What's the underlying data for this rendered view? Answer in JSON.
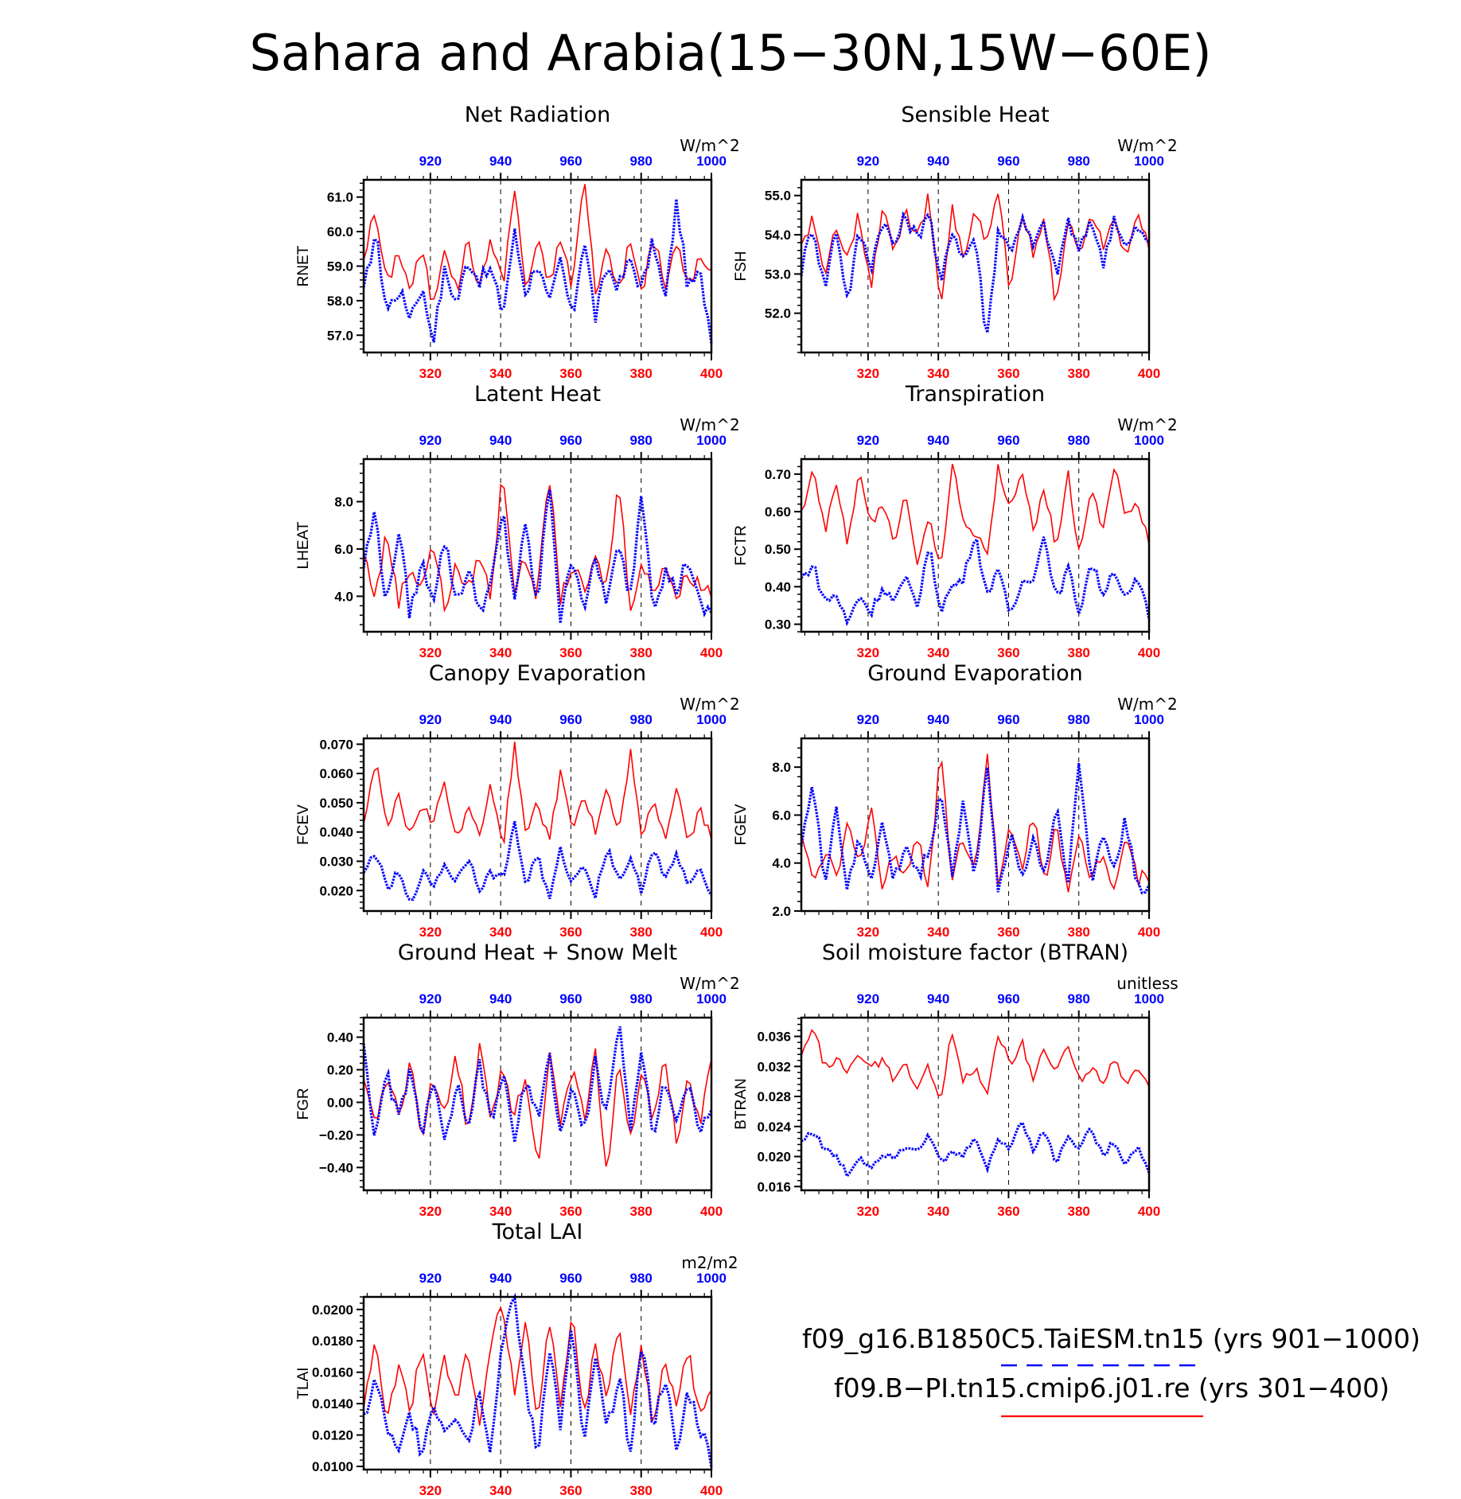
{
  "suptitle": "Sahara and Arabia(15−30N,15W−60E)",
  "colors": {
    "red": "#ff0000",
    "blue": "#0000ff",
    "axis": "#000000"
  },
  "legend": {
    "entries": [
      {
        "label": "f09_g16.B1850C5.TaiESM.tn15 (yrs 901−1000)",
        "color": "#0000ff",
        "style": "dashed"
      },
      {
        "label": "f09.B−PI.tn15.cmip6.j01.re (yrs 301−400)",
        "color": "#ff0000",
        "style": "solid"
      }
    ]
  },
  "chart_data": [
    {
      "type": "line",
      "title": "Net Radiation",
      "unit": "W/m^2",
      "ylabel": "RNET",
      "ylim": [
        56.5,
        61.5
      ],
      "yticks": [
        "57.0",
        "58.0",
        "59.0",
        "60.0",
        "61.0"
      ],
      "x_red_range": [
        301,
        400
      ],
      "x_red_ticks": [
        "320",
        "340",
        "360",
        "380",
        "400"
      ],
      "x_blue_range": [
        901,
        1000
      ],
      "x_blue_ticks": [
        "920",
        "940",
        "960",
        "980",
        "1000"
      ],
      "red_anchors": [
        59.3,
        60.6,
        58.4,
        59.5,
        58.3,
        59.5,
        57.8,
        59.7,
        58.2,
        59.8,
        58.3,
        59.9,
        58.4,
        61.3,
        58.3,
        59.7,
        58.5,
        59.8,
        58.4,
        61.6,
        58.3,
        59.5,
        58.3,
        59.7,
        58.2,
        59.9,
        58.4,
        59.6,
        58.5,
        59.2,
        58.7
      ],
      "blue_anchors": [
        58.2,
        60.0,
        57.7,
        58.3,
        57.6,
        58.4,
        56.9,
        58.9,
        57.9,
        59.2,
        58.6,
        58.9,
        57.6,
        60.0,
        58.2,
        59.2,
        57.8,
        59.2,
        57.4,
        59.9,
        57.5,
        59.0,
        58.4,
        59.2,
        58.3,
        59.8,
        57.9,
        60.9,
        58.3,
        58.8,
        57.0
      ],
      "series": [
        {
          "name": "f09_g16.B1850C5.TaiESM.tn15 (yrs 901−1000)",
          "x_axis": "top"
        },
        {
          "name": "f09.B−PI.tn15.cmip6.j01.re (yrs 301−400)",
          "x_axis": "bottom"
        }
      ]
    },
    {
      "type": "line",
      "title": "Sensible Heat",
      "unit": "W/m^2",
      "ylabel": "FSH",
      "ylim": [
        51.0,
        55.4
      ],
      "yticks": [
        "52.0",
        "53.0",
        "54.0",
        "55.0"
      ],
      "x_red_range": [
        301,
        400
      ],
      "x_red_ticks": [
        "320",
        "340",
        "360",
        "380",
        "400"
      ],
      "x_blue_range": [
        901,
        1000
      ],
      "x_blue_ticks": [
        "920",
        "940",
        "960",
        "980",
        "1000"
      ],
      "red_anchors": [
        53.8,
        54.4,
        52.8,
        54.3,
        53.5,
        54.6,
        52.5,
        54.8,
        53.5,
        54.6,
        53.9,
        55.0,
        52.0,
        54.7,
        53.4,
        54.6,
        53.7,
        55.2,
        52.3,
        54.5,
        53.6,
        54.4,
        52.1,
        54.4,
        53.5,
        54.6,
        53.7,
        54.4,
        53.5,
        54.4,
        53.8
      ],
      "blue_anchors": [
        53.1,
        54.3,
        52.6,
        54.2,
        52.3,
        54.1,
        53.2,
        54.4,
        53.7,
        54.5,
        53.9,
        54.7,
        52.6,
        54.2,
        53.4,
        54.0,
        51.3,
        54.2,
        53.6,
        54.4,
        53.7,
        54.3,
        52.9,
        54.4,
        53.5,
        54.5,
        53.2,
        54.5,
        53.6,
        54.2,
        53.7
      ],
      "series": [
        {
          "name": "f09_g16.B1850C5.TaiESM.tn15 (yrs 901−1000)",
          "x_axis": "top"
        },
        {
          "name": "f09.B−PI.tn15.cmip6.j01.re (yrs 301−400)",
          "x_axis": "bottom"
        }
      ]
    },
    {
      "type": "line",
      "title": "Latent Heat",
      "unit": "W/m^2",
      "ylabel": "LHEAT",
      "ylim": [
        2.5,
        9.8
      ],
      "yticks": [
        "4.0",
        "6.0",
        "8.0"
      ],
      "x_red_range": [
        301,
        400
      ],
      "x_red_ticks": [
        "320",
        "340",
        "360",
        "380",
        "400"
      ],
      "x_blue_range": [
        901,
        1000
      ],
      "x_blue_ticks": [
        "920",
        "940",
        "960",
        "980",
        "1000"
      ],
      "red_anchors": [
        5.8,
        4.0,
        6.7,
        3.8,
        5.2,
        4.5,
        6.2,
        3.5,
        5.3,
        4.2,
        5.8,
        3.9,
        9.5,
        4.3,
        5.6,
        4.0,
        9.3,
        3.8,
        5.4,
        4.1,
        5.5,
        4.4,
        9.0,
        3.6,
        5.3,
        4.2,
        5.5,
        3.9,
        5.0,
        4.5,
        4.2
      ],
      "blue_anchors": [
        5.3,
        7.6,
        3.5,
        6.9,
        3.2,
        5.4,
        4.0,
        6.4,
        3.8,
        5.1,
        3.5,
        4.4,
        7.6,
        3.9,
        7.0,
        3.4,
        9.1,
        2.8,
        5.9,
        3.6,
        5.4,
        3.8,
        6.1,
        4.0,
        8.6,
        3.6,
        5.1,
        4.2,
        5.7,
        3.5,
        3.3
      ],
      "series": [
        {
          "name": "f09_g16.B1850C5.TaiESM.tn15 (yrs 901−1000)",
          "x_axis": "top"
        },
        {
          "name": "f09.B−PI.tn15.cmip6.j01.re (yrs 301−400)",
          "x_axis": "bottom"
        }
      ]
    },
    {
      "type": "line",
      "title": "Transpiration",
      "unit": "W/m^2",
      "ylabel": "FCTR",
      "ylim": [
        0.28,
        0.74
      ],
      "yticks": [
        "0.30",
        "0.40",
        "0.50",
        "0.60",
        "0.70"
      ],
      "x_red_range": [
        301,
        400
      ],
      "x_red_ticks": [
        "320",
        "340",
        "360",
        "380",
        "400"
      ],
      "x_blue_range": [
        901,
        1000
      ],
      "x_blue_ticks": [
        "920",
        "940",
        "960",
        "980",
        "1000"
      ],
      "red_anchors": [
        0.6,
        0.71,
        0.55,
        0.66,
        0.52,
        0.7,
        0.56,
        0.62,
        0.52,
        0.66,
        0.47,
        0.58,
        0.44,
        0.73,
        0.58,
        0.54,
        0.48,
        0.72,
        0.6,
        0.72,
        0.55,
        0.66,
        0.5,
        0.7,
        0.48,
        0.67,
        0.56,
        0.72,
        0.58,
        0.62,
        0.52
      ],
      "blue_anchors": [
        0.42,
        0.46,
        0.36,
        0.38,
        0.3,
        0.38,
        0.33,
        0.4,
        0.36,
        0.42,
        0.35,
        0.51,
        0.34,
        0.4,
        0.42,
        0.55,
        0.37,
        0.46,
        0.31,
        0.41,
        0.43,
        0.54,
        0.36,
        0.45,
        0.33,
        0.47,
        0.38,
        0.45,
        0.36,
        0.42,
        0.32
      ],
      "series": [
        {
          "name": "f09_g16.B1850C5.TaiESM.tn15 (yrs 901−1000)",
          "x_axis": "top"
        },
        {
          "name": "f09.B−PI.tn15.cmip6.j01.re (yrs 301−400)",
          "x_axis": "bottom"
        }
      ]
    },
    {
      "type": "line",
      "title": "Canopy Evaporation",
      "unit": "W/m^2",
      "ylabel": "FCEV",
      "ylim": [
        0.013,
        0.072
      ],
      "yticks": [
        "0.020",
        "0.030",
        "0.040",
        "0.050",
        "0.060",
        "0.070"
      ],
      "x_red_range": [
        301,
        400
      ],
      "x_red_ticks": [
        "320",
        "340",
        "360",
        "380",
        "400"
      ],
      "x_blue_range": [
        901,
        1000
      ],
      "x_blue_ticks": [
        "920",
        "940",
        "960",
        "980",
        "1000"
      ],
      "red_anchors": [
        0.042,
        0.065,
        0.04,
        0.052,
        0.038,
        0.05,
        0.042,
        0.058,
        0.036,
        0.05,
        0.04,
        0.056,
        0.034,
        0.07,
        0.04,
        0.052,
        0.036,
        0.061,
        0.042,
        0.053,
        0.04,
        0.055,
        0.038,
        0.068,
        0.036,
        0.052,
        0.038,
        0.056,
        0.036,
        0.048,
        0.038
      ],
      "blue_anchors": [
        0.025,
        0.034,
        0.02,
        0.026,
        0.015,
        0.026,
        0.022,
        0.029,
        0.023,
        0.032,
        0.021,
        0.026,
        0.024,
        0.043,
        0.022,
        0.033,
        0.016,
        0.034,
        0.022,
        0.03,
        0.018,
        0.035,
        0.024,
        0.03,
        0.02,
        0.036,
        0.023,
        0.032,
        0.022,
        0.026,
        0.02
      ],
      "series": [
        {
          "name": "f09_g16.B1850C5.TaiESM.tn15 (yrs 901−1000)",
          "x_axis": "top"
        },
        {
          "name": "f09.B−PI.tn15.cmip6.j01.re (yrs 301−400)",
          "x_axis": "bottom"
        }
      ]
    },
    {
      "type": "line",
      "title": "Ground Evaporation",
      "unit": "W/m^2",
      "ylabel": "FGEV",
      "ylim": [
        2.0,
        9.2
      ],
      "yticks": [
        "2.0",
        "4.0",
        "6.0",
        "8.0"
      ],
      "x_red_range": [
        301,
        400
      ],
      "x_red_ticks": [
        "320",
        "340",
        "360",
        "380",
        "400"
      ],
      "x_blue_range": [
        901,
        1000
      ],
      "x_blue_ticks": [
        "920",
        "940",
        "960",
        "980",
        "1000"
      ],
      "red_anchors": [
        5.0,
        3.4,
        4.6,
        3.2,
        5.6,
        3.8,
        6.6,
        2.8,
        4.5,
        3.6,
        5.0,
        3.0,
        8.8,
        3.4,
        5.2,
        3.6,
        8.8,
        2.8,
        5.5,
        3.8,
        6.0,
        3.2,
        6.0,
        2.6,
        5.0,
        3.4,
        4.6,
        3.0,
        5.2,
        3.4,
        3.2
      ],
      "blue_anchors": [
        5.0,
        7.2,
        3.2,
        6.4,
        2.8,
        5.0,
        3.4,
        5.6,
        3.2,
        4.8,
        3.5,
        4.4,
        7.1,
        3.6,
        6.6,
        3.0,
        8.6,
        2.4,
        5.4,
        3.4,
        5.0,
        3.6,
        6.4,
        3.4,
        8.2,
        3.2,
        5.2,
        3.8,
        5.8,
        3.2,
        2.9
      ],
      "series": [
        {
          "name": "f09_g16.B1850C5.TaiESM.tn15 (yrs 901−1000)",
          "x_axis": "top"
        },
        {
          "name": "f09.B−PI.tn15.cmip6.j01.re (yrs 301−400)",
          "x_axis": "bottom"
        }
      ]
    },
    {
      "type": "line",
      "title": "Ground Heat + Snow Melt",
      "unit": "W/m^2",
      "ylabel": "FGR",
      "ylim": [
        -0.54,
        0.52
      ],
      "yticks": [
        "−0.40",
        "−0.20",
        "0.00",
        "0.20",
        "0.40"
      ],
      "x_red_range": [
        301,
        400
      ],
      "x_red_ticks": [
        "320",
        "340",
        "360",
        "380",
        "400"
      ],
      "x_blue_range": [
        901,
        1000
      ],
      "x_blue_ticks": [
        "920",
        "940",
        "960",
        "980",
        "1000"
      ],
      "red_anchors": [
        0.1,
        -0.15,
        0.2,
        -0.1,
        0.25,
        -0.2,
        0.15,
        -0.05,
        0.3,
        -0.2,
        0.37,
        -0.15,
        0.25,
        -0.1,
        0.2,
        -0.42,
        0.3,
        -0.15,
        0.2,
        -0.1,
        0.3,
        -0.48,
        0.25,
        -0.2,
        0.15,
        -0.1,
        0.3,
        -0.25,
        0.2,
        -0.15,
        0.25
      ],
      "blue_anchors": [
        0.38,
        -0.25,
        0.18,
        -0.1,
        0.2,
        -0.2,
        0.15,
        -0.28,
        0.12,
        -0.2,
        0.25,
        -0.15,
        0.2,
        -0.25,
        0.15,
        -0.1,
        0.3,
        -0.2,
        0.1,
        -0.2,
        0.25,
        -0.1,
        0.5,
        -0.15,
        0.32,
        -0.2,
        0.15,
        -0.1,
        0.1,
        -0.15,
        -0.05
      ],
      "series": [
        {
          "name": "f09_g16.B1850C5.TaiESM.tn15 (yrs 901−1000)",
          "x_axis": "top"
        },
        {
          "name": "f09.B−PI.tn15.cmip6.j01.re (yrs 301−400)",
          "x_axis": "bottom"
        }
      ]
    },
    {
      "type": "line",
      "title": "Soil moisture factor (BTRAN)",
      "unit": "unitless",
      "ylabel": "BTRAN",
      "ylim": [
        0.0155,
        0.0385
      ],
      "yticks": [
        "0.016",
        "0.020",
        "0.024",
        "0.028",
        "0.032",
        "0.036"
      ],
      "x_red_range": [
        301,
        400
      ],
      "x_red_ticks": [
        "320",
        "340",
        "360",
        "380",
        "400"
      ],
      "x_blue_range": [
        901,
        1000
      ],
      "x_blue_ticks": [
        "920",
        "940",
        "960",
        "980",
        "1000"
      ],
      "red_anchors": [
        0.034,
        0.0375,
        0.032,
        0.033,
        0.031,
        0.0335,
        0.0315,
        0.033,
        0.03,
        0.032,
        0.029,
        0.032,
        0.027,
        0.037,
        0.03,
        0.032,
        0.0285,
        0.0365,
        0.032,
        0.0355,
        0.03,
        0.0345,
        0.031,
        0.035,
        0.03,
        0.032,
        0.03,
        0.033,
        0.03,
        0.0315,
        0.029
      ],
      "blue_anchors": [
        0.022,
        0.0235,
        0.021,
        0.02,
        0.0175,
        0.02,
        0.0185,
        0.0205,
        0.02,
        0.0215,
        0.021,
        0.023,
        0.019,
        0.0205,
        0.02,
        0.023,
        0.018,
        0.0225,
        0.021,
        0.025,
        0.021,
        0.0235,
        0.019,
        0.023,
        0.021,
        0.024,
        0.02,
        0.022,
        0.019,
        0.0215,
        0.018
      ],
      "series": [
        {
          "name": "f09_g16.B1850C5.TaiESM.tn15 (yrs 901−1000)",
          "x_axis": "top"
        },
        {
          "name": "f09.B−PI.tn15.cmip6.j01.re (yrs 301−400)",
          "x_axis": "bottom"
        }
      ]
    },
    {
      "type": "line",
      "title": "Total LAI",
      "unit": "m2/m2",
      "ylabel": "TLAI",
      "ylim": [
        0.0098,
        0.0208
      ],
      "yticks": [
        "0.0100",
        "0.0120",
        "0.0140",
        "0.0160",
        "0.0180",
        "0.0200"
      ],
      "x_red_range": [
        301,
        400
      ],
      "x_red_ticks": [
        "320",
        "340",
        "360",
        "380",
        "400"
      ],
      "x_blue_range": [
        901,
        1000
      ],
      "x_blue_ticks": [
        "920",
        "940",
        "960",
        "980",
        "1000"
      ],
      "red_anchors": [
        0.014,
        0.018,
        0.013,
        0.0165,
        0.0135,
        0.0175,
        0.013,
        0.017,
        0.014,
        0.0175,
        0.0125,
        0.018,
        0.0205,
        0.0145,
        0.019,
        0.013,
        0.0195,
        0.014,
        0.02,
        0.013,
        0.018,
        0.014,
        0.0195,
        0.0135,
        0.0175,
        0.0125,
        0.017,
        0.014,
        0.0175,
        0.013,
        0.0145
      ],
      "blue_anchors": [
        0.013,
        0.0155,
        0.0125,
        0.0105,
        0.0135,
        0.011,
        0.014,
        0.0125,
        0.0135,
        0.0115,
        0.015,
        0.011,
        0.0185,
        0.0205,
        0.015,
        0.0105,
        0.018,
        0.0125,
        0.019,
        0.011,
        0.017,
        0.012,
        0.016,
        0.011,
        0.018,
        0.0125,
        0.016,
        0.0105,
        0.015,
        0.0125,
        0.0105
      ],
      "series": [
        {
          "name": "f09_g16.B1850C5.TaiESM.tn15 (yrs 901−1000)",
          "x_axis": "top"
        },
        {
          "name": "f09.B−PI.tn15.cmip6.j01.re (yrs 301−400)",
          "x_axis": "bottom"
        }
      ]
    }
  ]
}
